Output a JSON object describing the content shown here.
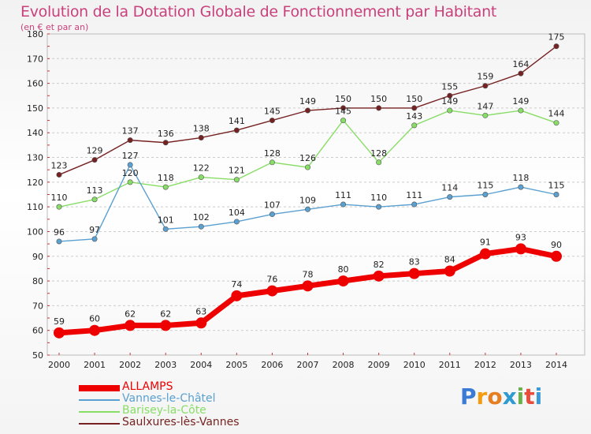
{
  "title": "Evolution de la Dotation Globale de Fonctionnement par Habitant",
  "subtitle": "(en € et par an)",
  "brand": "Proxiti",
  "chart_data": {
    "type": "line",
    "title": "Evolution de la Dotation Globale de Fonctionnement par Habitant",
    "subtitle": "(en € et par an)",
    "x": [
      2000,
      2001,
      2002,
      2003,
      2004,
      2005,
      2006,
      2007,
      2008,
      2009,
      2010,
      2011,
      2012,
      2013,
      2014
    ],
    "ylim": [
      50,
      180
    ],
    "yticks": [
      50,
      60,
      70,
      80,
      90,
      100,
      110,
      120,
      130,
      140,
      150,
      160,
      170,
      180
    ],
    "grid": "horizontal dashed",
    "legend_position": "bottom-left",
    "series": [
      {
        "name": "ALLAMPS",
        "color": "#ee0000",
        "values": [
          59,
          60,
          62,
          62,
          63,
          74,
          76,
          78,
          80,
          82,
          83,
          84,
          91,
          93,
          90
        ]
      },
      {
        "name": "Vannes-le-Châtel",
        "color": "#5aa0d0",
        "values": [
          96,
          97,
          127,
          101,
          102,
          104,
          107,
          109,
          111,
          110,
          111,
          114,
          115,
          118,
          115
        ]
      },
      {
        "name": "Barisey-la-Côte",
        "color": "#88dd66",
        "values": [
          110,
          113,
          120,
          118,
          122,
          121,
          128,
          126,
          145,
          128,
          143,
          149,
          147,
          149,
          144
        ]
      },
      {
        "name": "Saulxures-lès-Vannes",
        "color": "#772222",
        "values": [
          123,
          129,
          137,
          136,
          138,
          141,
          145,
          149,
          150,
          150,
          150,
          155,
          159,
          164,
          175
        ]
      }
    ]
  }
}
